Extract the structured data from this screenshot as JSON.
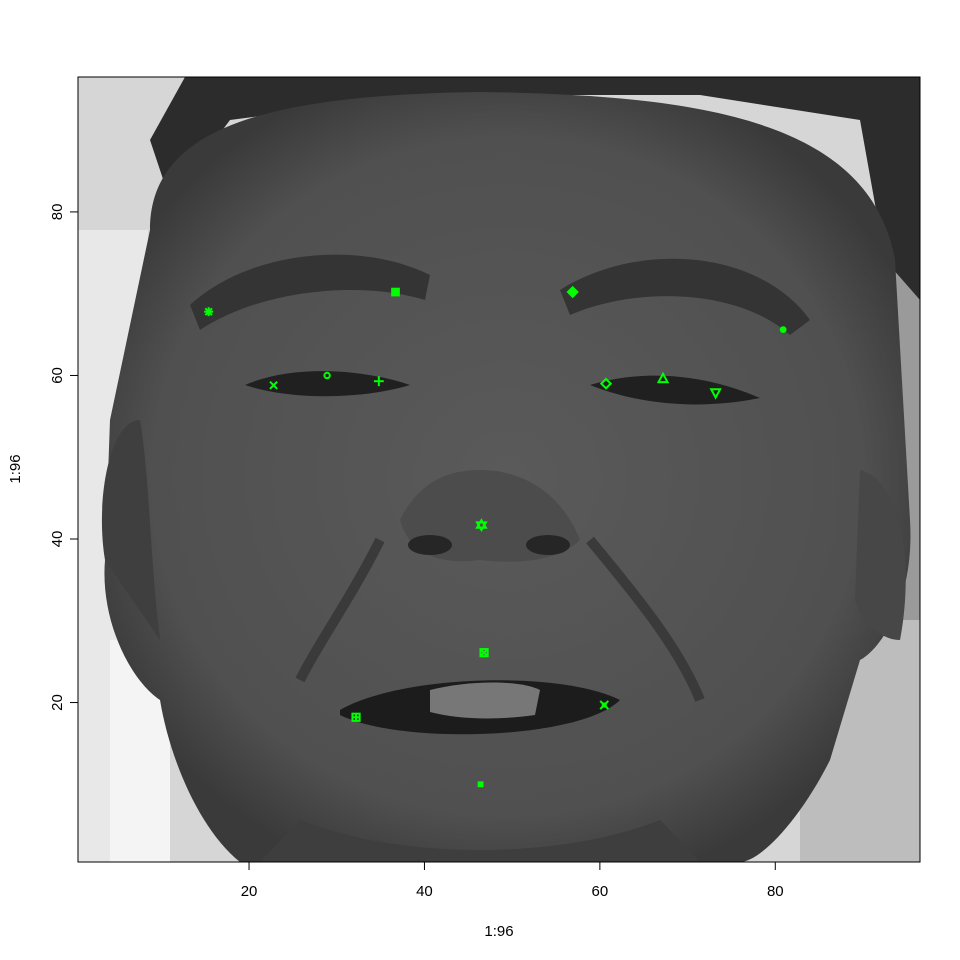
{
  "chart_data": {
    "type": "scatter",
    "title": "",
    "xlabel": "1:96",
    "ylabel": "1:96",
    "xlim": [
      0.5,
      96.5
    ],
    "ylim": [
      0.5,
      96.5
    ],
    "x_ticks": [
      20,
      40,
      60,
      80
    ],
    "y_ticks": [
      20,
      40,
      60,
      80
    ],
    "background_image": "grayscale face photograph (96 x 96 pixels)",
    "marker_color": "#00ff00",
    "points": [
      {
        "name": "left-eyebrow-outer",
        "x": 15.4,
        "y": 67.8,
        "symbol": "asterisk"
      },
      {
        "name": "left-eyebrow-inner",
        "x": 36.7,
        "y": 70.2,
        "symbol": "square-filled"
      },
      {
        "name": "left-eye-outer",
        "x": 22.8,
        "y": 58.8,
        "symbol": "cross"
      },
      {
        "name": "left-eye-center",
        "x": 28.9,
        "y": 60.0,
        "symbol": "circle"
      },
      {
        "name": "left-eye-inner",
        "x": 34.8,
        "y": 59.3,
        "symbol": "plus"
      },
      {
        "name": "right-eyebrow-inner",
        "x": 56.9,
        "y": 70.2,
        "symbol": "diamond-filled"
      },
      {
        "name": "right-eyebrow-outer",
        "x": 80.9,
        "y": 65.6,
        "symbol": "circle-filled"
      },
      {
        "name": "right-eye-inner",
        "x": 60.7,
        "y": 59.0,
        "symbol": "diamond"
      },
      {
        "name": "right-eye-center",
        "x": 67.2,
        "y": 59.6,
        "symbol": "triangle-up"
      },
      {
        "name": "right-eye-outer",
        "x": 73.2,
        "y": 57.9,
        "symbol": "triangle-down"
      },
      {
        "name": "nose-tip",
        "x": 46.5,
        "y": 41.7,
        "symbol": "star-of-david"
      },
      {
        "name": "upper-lip",
        "x": 46.8,
        "y": 26.1,
        "symbol": "square-cross"
      },
      {
        "name": "mouth-left-corner",
        "x": 32.2,
        "y": 18.2,
        "symbol": "square-plus"
      },
      {
        "name": "mouth-right-corner",
        "x": 60.5,
        "y": 19.7,
        "symbol": "square-x"
      },
      {
        "name": "lower-lip",
        "x": 46.4,
        "y": 10.0,
        "symbol": "square-filled-small"
      }
    ]
  }
}
